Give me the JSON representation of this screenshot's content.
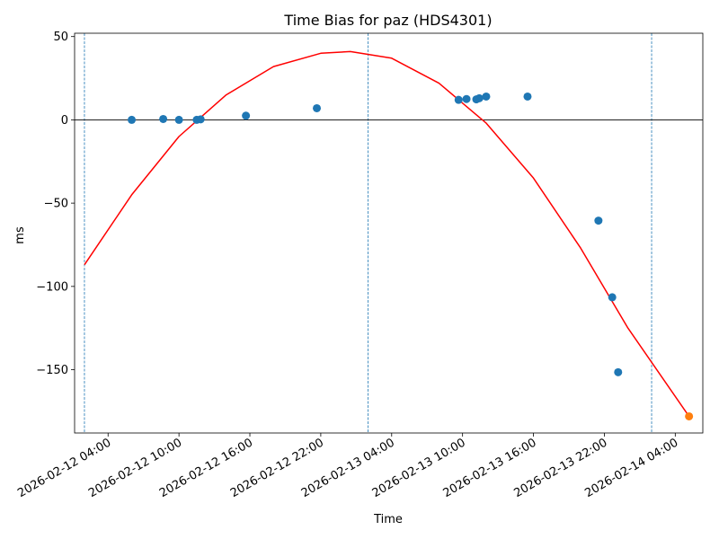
{
  "chart_data": {
    "type": "scatter",
    "title": "Time Bias for paz (HDS4301)",
    "xlabel": "Time",
    "ylabel": "ms",
    "xlim": [
      "2026-02-12T01:10",
      "2026-02-14T06:20"
    ],
    "ylim": [
      -188,
      52
    ],
    "x_ticks": [
      "2026-02-12 04:00",
      "2026-02-12 10:00",
      "2026-02-12 16:00",
      "2026-02-12 22:00",
      "2026-02-13 04:00",
      "2026-02-13 10:00",
      "2026-02-13 16:00",
      "2026-02-13 22:00",
      "2026-02-14 04:00"
    ],
    "y_ticks": [
      50,
      0,
      -50,
      -100,
      -150
    ],
    "vertical_lines": [
      "2026-02-12T02:00",
      "2026-02-13T02:00",
      "2026-02-14T02:00"
    ],
    "zero_line": 0,
    "colors": {
      "points": "#1f77b4",
      "highlight": "#ff7f0e",
      "fit": "#ff0000",
      "axes": "#000000",
      "guides": "#1f77b4"
    },
    "series": [
      {
        "type": "scatter",
        "points": [
          {
            "x": "2026-02-12T06:00",
            "y": 0
          },
          {
            "x": "2026-02-12T08:40",
            "y": 0.5
          },
          {
            "x": "2026-02-12T10:00",
            "y": 0
          },
          {
            "x": "2026-02-12T11:30",
            "y": 0
          },
          {
            "x": "2026-02-12T11:50",
            "y": 0.3
          },
          {
            "x": "2026-02-12T15:40",
            "y": 2.5
          },
          {
            "x": "2026-02-12T21:40",
            "y": 7
          },
          {
            "x": "2026-02-13T09:40",
            "y": 12
          },
          {
            "x": "2026-02-13T10:20",
            "y": 12.5
          },
          {
            "x": "2026-02-13T11:10",
            "y": 12.3
          },
          {
            "x": "2026-02-13T11:25",
            "y": 13
          },
          {
            "x": "2026-02-13T12:00",
            "y": 14
          },
          {
            "x": "2026-02-13T15:30",
            "y": 14
          },
          {
            "x": "2026-02-13T21:30",
            "y": -60.5
          },
          {
            "x": "2026-02-13T22:40",
            "y": -106.5
          },
          {
            "x": "2026-02-13T23:10",
            "y": -151.5
          }
        ]
      },
      {
        "type": "scatter",
        "points": [
          {
            "x": "2026-02-14T05:10",
            "y": -178
          }
        ]
      },
      {
        "type": "line",
        "points": [
          {
            "x": "2026-02-12T02:00",
            "y": -87
          },
          {
            "x": "2026-02-12T06:00",
            "y": -45
          },
          {
            "x": "2026-02-12T10:00",
            "y": -10
          },
          {
            "x": "2026-02-12T14:00",
            "y": 15
          },
          {
            "x": "2026-02-12T18:00",
            "y": 32
          },
          {
            "x": "2026-02-12T22:00",
            "y": 40
          },
          {
            "x": "2026-02-13T00:30",
            "y": 41
          },
          {
            "x": "2026-02-13T04:00",
            "y": 37
          },
          {
            "x": "2026-02-13T08:00",
            "y": 22
          },
          {
            "x": "2026-02-13T12:00",
            "y": -2
          },
          {
            "x": "2026-02-13T16:00",
            "y": -35
          },
          {
            "x": "2026-02-13T20:00",
            "y": -77
          },
          {
            "x": "2026-02-14T00:00",
            "y": -125
          },
          {
            "x": "2026-02-14T05:10",
            "y": -178
          }
        ]
      }
    ],
    "grid": false,
    "legend": false
  }
}
